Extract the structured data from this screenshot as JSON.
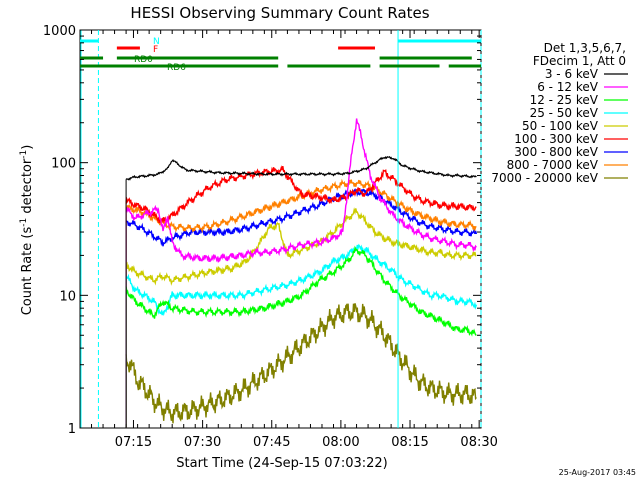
{
  "chart_data": {
    "type": "line",
    "title": "HESSI Observing Summary Count Rates",
    "xlabel": "Start Time (24-Sep-15 07:03:22)",
    "ylabel": "Count Rate (s⁻¹ detector⁻¹)",
    "ylabel_main": "Count Rate (s",
    "ylabel_exp": "-1",
    "ylabel_mid": " detector",
    "ylabel_end": ")",
    "x_unit": "minutes since 07:03:22",
    "xlim": [
      0,
      87
    ],
    "ylim": [
      1,
      1000
    ],
    "yscale": "log",
    "x_tick_labels": [
      "07:15",
      "07:30",
      "07:45",
      "08:00",
      "08:15",
      "08:30"
    ],
    "x_ticks": [
      11.6,
      26.6,
      41.6,
      56.6,
      71.6,
      86.6
    ],
    "y_tick_labels": [
      "1",
      "10",
      "100",
      "1000"
    ],
    "y_ticks": [
      1,
      10,
      100,
      1000
    ],
    "legend_header": [
      "Det 1,3,5,6,7,",
      "FDecim 1, Att 0"
    ],
    "legend_position": "right",
    "timestamp": "25-Aug-2017 03:45",
    "series": [
      {
        "name": "3 - 6 keV",
        "color": "#000000",
        "x": [
          10,
          12,
          15,
          17,
          19,
          20,
          23,
          30,
          40,
          45,
          50,
          55,
          58,
          60,
          62,
          64,
          66,
          68,
          70,
          72,
          74,
          76,
          78,
          80,
          82,
          84,
          86
        ],
        "y": [
          75,
          78,
          80,
          82,
          90,
          105,
          88,
          84,
          82,
          82,
          82,
          82,
          83,
          86,
          90,
          100,
          110,
          108,
          95,
          90,
          86,
          84,
          82,
          80,
          80,
          79,
          78
        ]
      },
      {
        "name": "6 - 12 keV",
        "color": "#ff00ff",
        "x": [
          10,
          12,
          15,
          17,
          18,
          19,
          20,
          22,
          26,
          30,
          35,
          38,
          40,
          44,
          48,
          52,
          55,
          57,
          58,
          59,
          60,
          61,
          62,
          63,
          65,
          68,
          70,
          73,
          76,
          78,
          80,
          82,
          84,
          86
        ],
        "y": [
          45,
          38,
          42,
          45,
          30,
          40,
          25,
          20,
          19,
          19,
          20,
          21,
          21,
          22,
          24,
          25,
          27,
          30,
          60,
          120,
          210,
          160,
          110,
          80,
          55,
          40,
          35,
          30,
          27,
          26,
          25,
          24,
          24,
          23
        ]
      },
      {
        "name": "12 - 25 keV",
        "color": "#00ff00",
        "x": [
          10,
          12,
          14,
          16,
          18,
          20,
          25,
          30,
          35,
          40,
          45,
          48,
          52,
          55,
          58,
          60,
          62,
          64,
          66,
          68,
          70,
          72,
          74,
          76,
          78,
          80,
          82,
          84,
          86
        ],
        "y": [
          11,
          9,
          8,
          7,
          9,
          8,
          7.5,
          7.5,
          7.5,
          8,
          9,
          10,
          13,
          15,
          18,
          22,
          20,
          16,
          13,
          11,
          9.5,
          8.5,
          7.5,
          7,
          6.5,
          6,
          5.5,
          5.5,
          5
        ]
      },
      {
        "name": "25 - 50 keV",
        "color": "#00ffff",
        "x": [
          10,
          12,
          14,
          16,
          18,
          20,
          25,
          30,
          35,
          40,
          45,
          48,
          52,
          55,
          58,
          60,
          62,
          64,
          66,
          68,
          70,
          72,
          74,
          76,
          78,
          80,
          82,
          84,
          86
        ],
        "y": [
          14,
          11,
          10,
          9,
          7,
          10,
          10,
          10,
          10,
          11,
          12,
          13,
          15,
          18,
          20,
          23,
          22,
          19,
          17,
          15,
          13,
          12,
          11,
          10,
          10,
          9.5,
          9,
          9,
          8.5
        ]
      },
      {
        "name": "50 - 100 keV",
        "color": "#cccc00",
        "x": [
          10,
          12,
          14,
          16,
          18,
          20,
          24,
          28,
          33,
          36,
          38,
          41,
          43,
          45,
          48,
          52,
          55,
          58,
          60,
          62,
          64,
          66,
          68,
          70,
          72,
          74,
          76,
          78,
          80,
          82,
          84,
          86
        ],
        "y": [
          17,
          15,
          14,
          13,
          14,
          13,
          14,
          15,
          16,
          18,
          22,
          32,
          34,
          20,
          22,
          25,
          30,
          38,
          43,
          36,
          30,
          27,
          25,
          24,
          23,
          22,
          21,
          21,
          20,
          20,
          20,
          20
        ]
      },
      {
        "name": "100 - 300 keV",
        "color": "#ff0000",
        "x": [
          10,
          12,
          14,
          16,
          18,
          20,
          24,
          28,
          32,
          36,
          40,
          44,
          48,
          52,
          55,
          58,
          60,
          62,
          64,
          66,
          68,
          70,
          72,
          74,
          76,
          78,
          80,
          82,
          84,
          86
        ],
        "y": [
          52,
          48,
          45,
          40,
          36,
          40,
          52,
          65,
          75,
          80,
          85,
          88,
          58,
          55,
          52,
          56,
          62,
          58,
          70,
          85,
          75,
          65,
          57,
          52,
          50,
          48,
          47,
          47,
          46,
          46
        ]
      },
      {
        "name": "300 - 800 keV",
        "color": "#0000ff",
        "x": [
          10,
          12,
          14,
          16,
          18,
          20,
          24,
          28,
          32,
          36,
          40,
          44,
          48,
          52,
          55,
          58,
          60,
          62,
          64,
          66,
          68,
          70,
          72,
          74,
          76,
          78,
          80,
          82,
          84,
          86
        ],
        "y": [
          36,
          34,
          31,
          28,
          25,
          27,
          30,
          30,
          30,
          32,
          35,
          38,
          43,
          48,
          54,
          58,
          60,
          60,
          57,
          52,
          47,
          42,
          38,
          35,
          33,
          32,
          31,
          30,
          30,
          29
        ]
      },
      {
        "name": "800 - 7000 keV",
        "color": "#ff8000",
        "x": [
          10,
          12,
          14,
          16,
          18,
          20,
          24,
          28,
          32,
          36,
          40,
          44,
          48,
          52,
          55,
          58,
          60,
          62,
          64,
          66,
          68,
          70,
          72,
          74,
          76,
          78,
          80,
          82,
          84,
          86
        ],
        "y": [
          46,
          44,
          42,
          38,
          35,
          33,
          32,
          33,
          36,
          40,
          45,
          50,
          56,
          62,
          66,
          70,
          70,
          68,
          64,
          58,
          52,
          47,
          43,
          40,
          38,
          36,
          35,
          34,
          34,
          33
        ]
      },
      {
        "name": "7000 - 20000 keV",
        "color": "#808000",
        "x": [
          10,
          11,
          12,
          14,
          16,
          18,
          20,
          24,
          28,
          32,
          36,
          40,
          44,
          48,
          52,
          55,
          58,
          60,
          62,
          64,
          66,
          68,
          70,
          72,
          74,
          76,
          78,
          80,
          82,
          84,
          86
        ],
        "y": [
          3,
          3.2,
          2.4,
          2,
          1.6,
          1.4,
          1.3,
          1.35,
          1.5,
          1.7,
          2,
          2.5,
          3.2,
          4.2,
          5.5,
          6.8,
          7.5,
          7.5,
          7,
          6,
          5,
          4,
          3.2,
          2.6,
          2.2,
          2,
          1.9,
          1.8,
          1.8,
          1.8,
          1.7
        ]
      }
    ],
    "status_bars": [
      {
        "label": "N",
        "color": "#00ffff",
        "segments": [
          [
            -12,
            4
          ],
          [
            69,
            87
          ]
        ]
      },
      {
        "label": "F",
        "color": "#ff0000",
        "segments": [
          [
            8,
            13
          ],
          [
            56,
            64
          ]
        ]
      },
      {
        "label": "RD0",
        "color": "#008000",
        "segments": [
          [
            -12,
            5
          ],
          [
            8,
            43
          ],
          [
            65,
            85
          ]
        ]
      },
      {
        "label": "RD6",
        "color": "#008000",
        "segments": [
          [
            -12,
            43
          ],
          [
            45,
            63
          ],
          [
            65,
            78
          ],
          [
            80,
            87
          ]
        ]
      }
    ],
    "saa_markers": [
      {
        "color": "#00ffff",
        "x": [
          -12,
          4,
          69,
          87
        ]
      }
    ]
  }
}
